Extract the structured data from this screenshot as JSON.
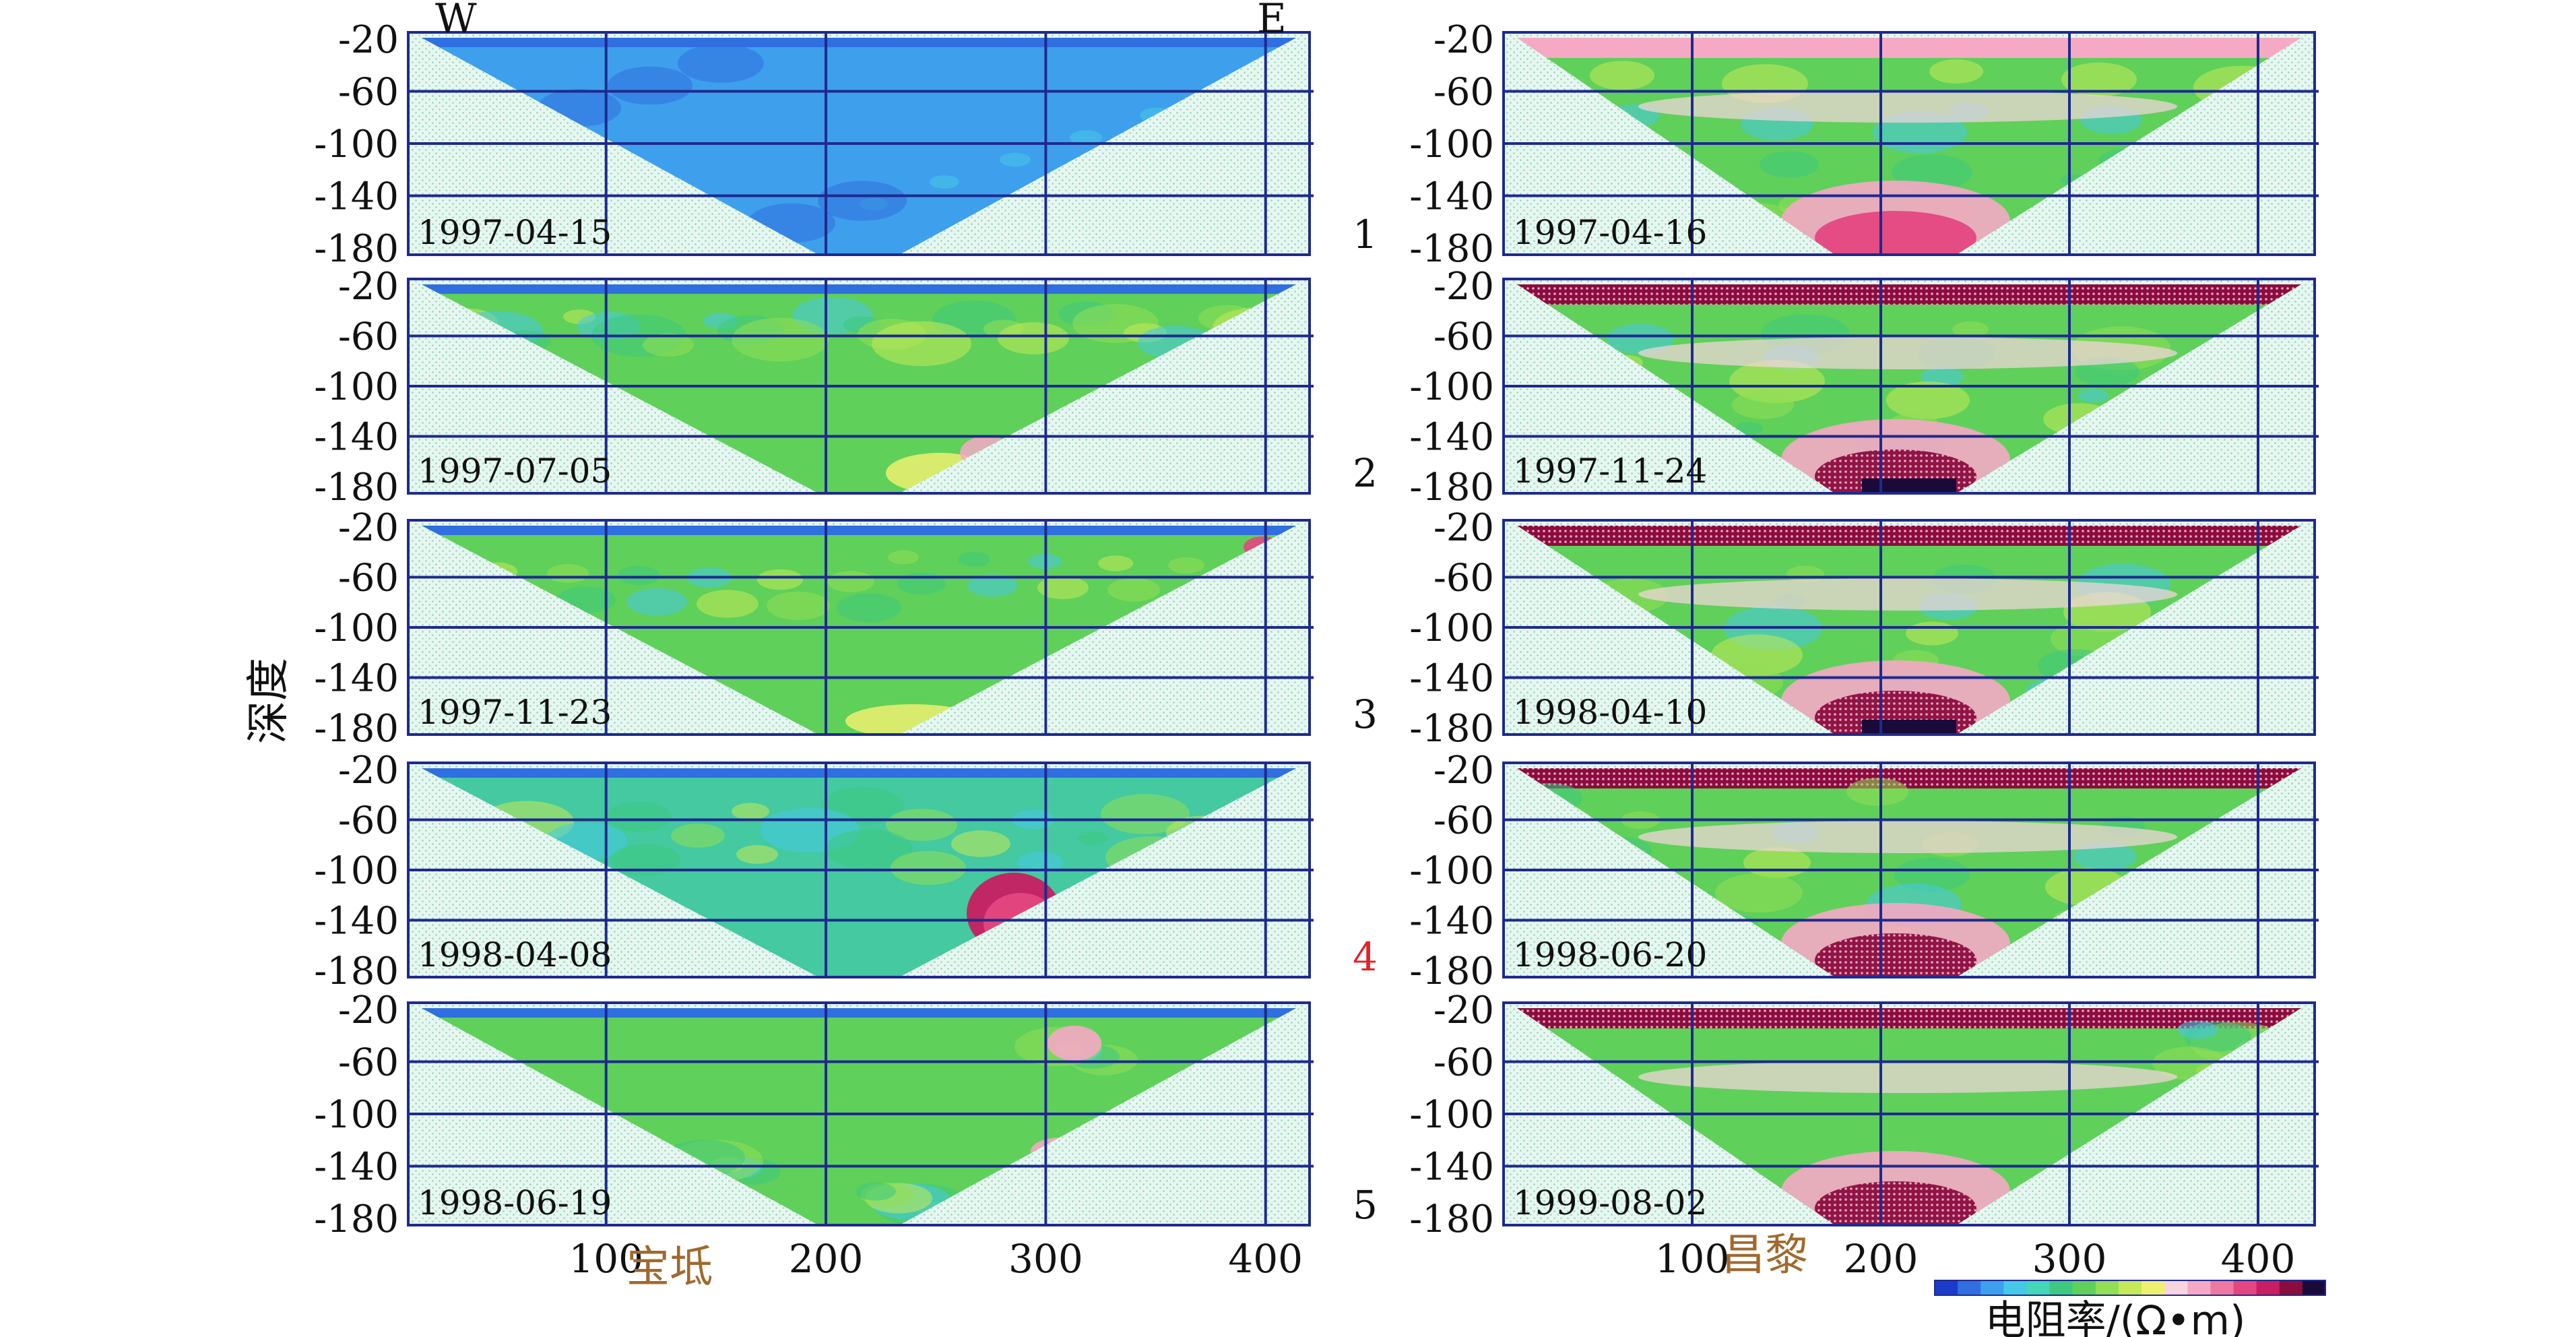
{
  "figure": {
    "direction_west": "W",
    "direction_east": "E",
    "y_axis_label": "深度",
    "left_site_label": "宝坻",
    "right_site_label": "昌黎",
    "colorbar_label": "电阻率/(Ω•m)",
    "colors": {
      "axis": "#1e2a8e",
      "grid": "#1e2a8e",
      "background_fill": "#e6f6ef",
      "site_label": "#a0692d",
      "highlight_number": "#e0242a"
    },
    "colorbar_colors": [
      "#1a3cc8",
      "#2f6fe0",
      "#3ea0ec",
      "#46c9e6",
      "#44d7b8",
      "#3ec97e",
      "#5fd05a",
      "#92de56",
      "#c4ea58",
      "#eef070",
      "#f8d5de",
      "#f5a9c4",
      "#ef78a2",
      "#e44780",
      "#c81e62",
      "#8a0d3e",
      "#1a0a3a"
    ]
  },
  "chart_data": [
    {
      "type": "heatmap",
      "panel": "left",
      "row": 1,
      "date_label": "1997-04-15",
      "xticks": [
        "100",
        "200",
        "300",
        "400"
      ],
      "yticks": [
        "-20",
        "-60",
        "-100",
        "-140",
        "-180"
      ],
      "ylim": [
        -180,
        -20
      ],
      "xlim": [
        10,
        420
      ],
      "dominant_resistivity": "low (blue)",
      "anomaly": "none"
    },
    {
      "type": "heatmap",
      "panel": "left",
      "row": 2,
      "date_label": "1997-07-05",
      "xticks": [
        "100",
        "200",
        "300",
        "400"
      ],
      "yticks": [
        "-20",
        "-60",
        "-100",
        "-140",
        "-180"
      ],
      "ylim": [
        -180,
        -20
      ],
      "xlim": [
        10,
        420
      ],
      "dominant_resistivity": "medium (green)",
      "anomaly": "minor high resistivity near bottom at x≈250"
    },
    {
      "type": "heatmap",
      "panel": "left",
      "row": 3,
      "date_label": "1997-11-23",
      "xticks": [
        "100",
        "200",
        "300",
        "400"
      ],
      "yticks": [
        "-20",
        "-60",
        "-100",
        "-140",
        "-180"
      ],
      "ylim": [
        -180,
        -20
      ],
      "xlim": [
        10,
        420
      ],
      "dominant_resistivity": "medium (green)",
      "anomaly": "small high resistivity at x≈400 near surface"
    },
    {
      "type": "heatmap",
      "panel": "left",
      "row": 4,
      "date_label": "1998-04-08",
      "xticks": [
        "100",
        "200",
        "300",
        "400"
      ],
      "yticks": [
        "-20",
        "-60",
        "-100",
        "-140",
        "-180"
      ],
      "ylim": [
        -180,
        -20
      ],
      "xlim": [
        10,
        420
      ],
      "dominant_resistivity": "medium (green-cyan)",
      "anomaly": "high resistivity body at x≈250, depth -110 to -170"
    },
    {
      "type": "heatmap",
      "panel": "left",
      "row": 5,
      "date_label": "1998-06-19",
      "xticks": [
        "100",
        "200",
        "300",
        "400"
      ],
      "yticks": [
        "-20",
        "-60",
        "-100",
        "-140",
        "-180"
      ],
      "ylim": [
        -180,
        -20
      ],
      "xlim": [
        10,
        420
      ],
      "dominant_resistivity": "medium (green)",
      "anomaly": "scattered high resistivity near x≈310"
    },
    {
      "type": "heatmap",
      "panel": "right",
      "row": 1,
      "panel_number": "1",
      "date_label": "1997-04-16",
      "xticks": [
        "100",
        "200",
        "300",
        "400"
      ],
      "yticks": [
        "-20",
        "-60",
        "-100",
        "-140",
        "-180"
      ],
      "ylim": [
        -180,
        -20
      ],
      "xlim": [
        0,
        430
      ],
      "dominant_resistivity": "medium (green)",
      "anomaly": "high resistivity bottom center"
    },
    {
      "type": "heatmap",
      "panel": "right",
      "row": 2,
      "panel_number": "2",
      "date_label": "1997-11-24",
      "xticks": [
        "100",
        "200",
        "300",
        "400"
      ],
      "yticks": [
        "-20",
        "-60",
        "-100",
        "-140",
        "-180"
      ],
      "ylim": [
        -180,
        -20
      ],
      "xlim": [
        0,
        430
      ],
      "dominant_resistivity": "medium (green)",
      "anomaly": "high resistivity surface band and bottom"
    },
    {
      "type": "heatmap",
      "panel": "right",
      "row": 3,
      "panel_number": "3",
      "date_label": "1998-04-10",
      "xticks": [
        "100",
        "200",
        "300",
        "400"
      ],
      "yticks": [
        "-20",
        "-60",
        "-100",
        "-140",
        "-180"
      ],
      "ylim": [
        -180,
        -20
      ],
      "xlim": [
        0,
        430
      ],
      "dominant_resistivity": "medium (green-cyan)",
      "anomaly": "high resistivity surface band and bottom"
    },
    {
      "type": "heatmap",
      "panel": "right",
      "row": 4,
      "panel_number": "4",
      "date_label": "1998-06-20",
      "xticks": [
        "100",
        "200",
        "300",
        "400"
      ],
      "yticks": [
        "-20",
        "-60",
        "-100",
        "-140",
        "-180"
      ],
      "ylim": [
        -180,
        -20
      ],
      "xlim": [
        0,
        430
      ],
      "dominant_resistivity": "medium (green)",
      "anomaly": "high resistivity surface band and bottom"
    },
    {
      "type": "heatmap",
      "panel": "right",
      "row": 5,
      "panel_number": "5",
      "date_label": "1999-08-02",
      "xticks": [
        "100",
        "200",
        "300",
        "400"
      ],
      "yticks": [
        "-20",
        "-60",
        "-100",
        "-140",
        "-180"
      ],
      "ylim": [
        -180,
        -20
      ],
      "xlim": [
        0,
        430
      ],
      "dominant_resistivity": "medium (green)",
      "anomaly": "high resistivity surface band and bottom"
    }
  ]
}
